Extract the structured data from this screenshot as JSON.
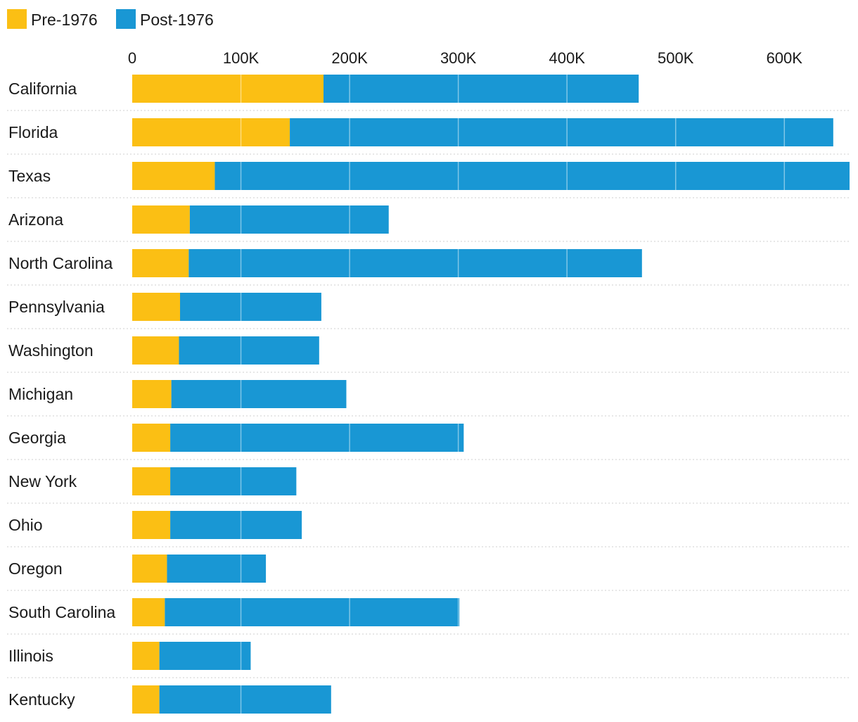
{
  "chart_data": {
    "type": "bar",
    "orientation": "horizontal",
    "stacked": true,
    "title": "",
    "xlabel": "",
    "ylabel": "",
    "xlim": [
      0,
      660000
    ],
    "x_ticks": [
      0,
      100000,
      200000,
      300000,
      400000,
      500000,
      600000
    ],
    "x_tick_labels": [
      "0",
      "100K",
      "200K",
      "300K",
      "400K",
      "500K",
      "600K"
    ],
    "x_axis_position": "top",
    "grid": "vertical lines inside bars",
    "legend": {
      "position": "top-left"
    },
    "categories": [
      "California",
      "Florida",
      "Texas",
      "Arizona",
      "North Carolina",
      "Pennsylvania",
      "Washington",
      "Michigan",
      "Georgia",
      "New York",
      "Ohio",
      "Oregon",
      "South Carolina",
      "Illinois",
      "Kentucky"
    ],
    "series": [
      {
        "name": "Pre-1976",
        "color": "#FBBF14",
        "values": [
          176000,
          145000,
          76000,
          53000,
          52000,
          44000,
          43000,
          36000,
          35000,
          35000,
          35000,
          32000,
          30000,
          25000,
          25000
        ]
      },
      {
        "name": "Post-1976",
        "color": "#1997D4",
        "values": [
          290000,
          500000,
          590000,
          183000,
          417000,
          130000,
          129000,
          161000,
          270000,
          116000,
          121000,
          91000,
          271000,
          84000,
          158000
        ]
      }
    ]
  }
}
